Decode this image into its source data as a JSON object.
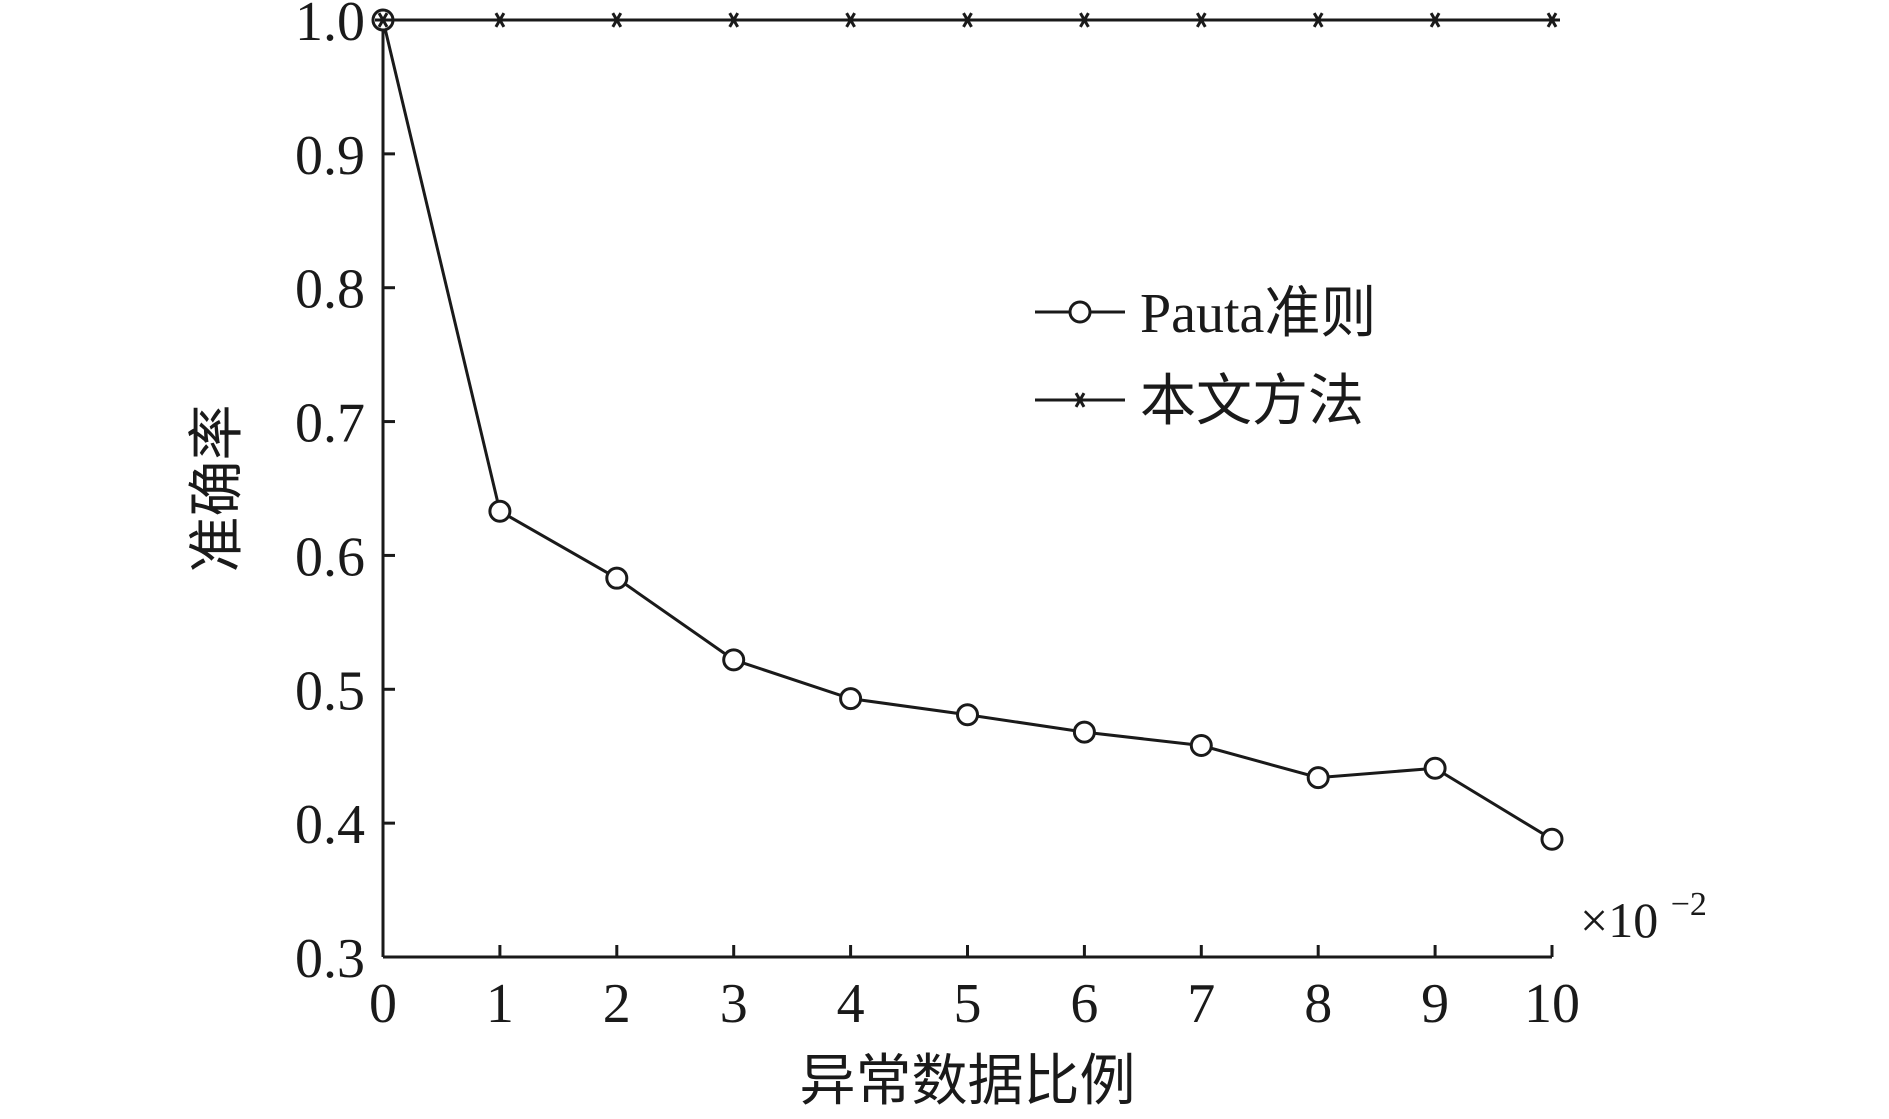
{
  "chart_data": {
    "type": "line",
    "title": "",
    "xlabel": "异常数据比例",
    "ylabel": "准确率",
    "x_multiplier_label": "×10",
    "x_multiplier_exponent": "−2",
    "x": [
      0,
      1,
      2,
      3,
      4,
      5,
      6,
      7,
      8,
      9,
      10
    ],
    "xlim": [
      0,
      10
    ],
    "ylim": [
      0.3,
      1.0
    ],
    "x_ticks": [
      0,
      1,
      2,
      3,
      4,
      5,
      6,
      7,
      8,
      9,
      10
    ],
    "x_tick_labels": [
      "0",
      "1",
      "2",
      "3",
      "4",
      "5",
      "6",
      "7",
      "8",
      "9",
      "10"
    ],
    "y_ticks": [
      0.3,
      0.4,
      0.5,
      0.6,
      0.7,
      0.8,
      0.9,
      1.0
    ],
    "y_tick_labels": [
      "0.3",
      "0.4",
      "0.5",
      "0.6",
      "0.7",
      "0.8",
      "0.9",
      "1.0"
    ],
    "grid": false,
    "legend_position": "upper-right",
    "series": [
      {
        "name": "Pauta准则",
        "marker": "circle",
        "color": "#1a1a1a",
        "values": [
          1.0,
          0.633,
          0.583,
          0.522,
          0.493,
          0.481,
          0.468,
          0.458,
          0.434,
          0.441,
          0.388
        ]
      },
      {
        "name": "本文方法",
        "marker": "asterisk",
        "color": "#1a1a1a",
        "values": [
          1.0,
          1.0,
          1.0,
          1.0,
          1.0,
          1.0,
          1.0,
          1.0,
          1.0,
          1.0,
          1.0
        ]
      }
    ]
  }
}
